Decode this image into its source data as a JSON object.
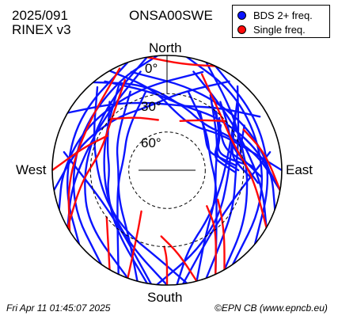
{
  "header": {
    "date": "2025/091",
    "format": "RINEX v3",
    "station": "ONSA00SWE"
  },
  "footer": {
    "timestamp": "Fri Apr 11 01:45:07 2025",
    "credit": "©EPN CB (www.epncb.eu)"
  },
  "colors": {
    "multi": "#0a14ff",
    "single": "#ff0a0a",
    "grid": "#000000"
  },
  "chart_data": {
    "type": "scatter",
    "projection": "polar-skyplot",
    "directions": {
      "north": "North",
      "south": "South",
      "east": "East",
      "west": "West"
    },
    "elevation_rings": [
      {
        "elevation": 0,
        "label": "0°"
      },
      {
        "elevation": 30,
        "label": "30°"
      },
      {
        "elevation": 60,
        "label": "60°"
      }
    ],
    "legend": {
      "placement": "top-right",
      "entries": [
        {
          "key": "multi",
          "label": "BDS 2+ freq."
        },
        {
          "key": "single",
          "label": "Single freq."
        }
      ]
    },
    "series": [
      {
        "name": "BDS 2+ freq.",
        "color_key": "multi",
        "tracks": [
          {
            "az": [
              190,
              220,
              250,
              270,
              290,
              320
            ],
            "el": [
              0,
              28,
              40,
              45,
              40,
              20
            ]
          },
          {
            "az": [
              180,
              205,
              235,
              265,
              300,
              330
            ],
            "el": [
              0,
              24,
              36,
              40,
              34,
              14
            ]
          },
          {
            "az": [
              170,
              185,
              215,
              250,
              290,
              320
            ],
            "el": [
              0,
              20,
              32,
              36,
              28,
              5
            ]
          },
          {
            "az": [
              175,
              165,
              140,
              110,
              80,
              50
            ],
            "el": [
              0,
              26,
              40,
              46,
              42,
              20
            ]
          },
          {
            "az": [
              185,
              160,
              130,
              100,
              70,
              45
            ],
            "el": [
              0,
              22,
              36,
              42,
              36,
              12
            ]
          },
          {
            "az": [
              160,
              145,
              120,
              90,
              65,
              40
            ],
            "el": [
              0,
              18,
              30,
              36,
              28,
              4
            ]
          },
          {
            "az": [
              200,
              235,
              265,
              295,
              325,
              350
            ],
            "el": [
              0,
              15,
              24,
              26,
              18,
              0
            ]
          },
          {
            "az": [
              150,
              125,
              95,
              70,
              45,
              20
            ],
            "el": [
              0,
              16,
              26,
              28,
              20,
              0
            ]
          },
          {
            "az": [
              215,
              250,
              290,
              330,
              355
            ],
            "el": [
              0,
              10,
              15,
              10,
              0
            ]
          },
          {
            "az": [
              145,
              110,
              75,
              40,
              10
            ],
            "el": [
              0,
              10,
              14,
              9,
              0
            ]
          },
          {
            "az": [
              195,
              210,
              240,
              270,
              300,
              335
            ],
            "el": [
              0,
              30,
              46,
              52,
              44,
              22
            ]
          },
          {
            "az": [
              165,
              150,
              120,
              90,
              60,
              30
            ],
            "el": [
              0,
              30,
              46,
              52,
              44,
              22
            ]
          },
          {
            "az": [
              230,
              260,
              300,
              340
            ],
            "el": [
              0,
              8,
              8,
              0
            ]
          },
          {
            "az": [
              130,
              95,
              60,
              25
            ],
            "el": [
              0,
              8,
              8,
              0
            ]
          },
          {
            "az": [
              205,
              225,
              255,
              285,
              315,
              345
            ],
            "el": [
              0,
              35,
              50,
              55,
              46,
              26
            ]
          },
          {
            "az": [
              155,
              135,
              105,
              75,
              45,
              15
            ],
            "el": [
              0,
              35,
              50,
              55,
              46,
              26
            ]
          },
          {
            "az": [
              330,
              350,
              10,
              30,
              55,
              75,
              90
            ],
            "el": [
              0,
              25,
              45,
              50,
              40,
              25,
              0
            ]
          },
          {
            "az": [
              320,
              345,
              15,
              40,
              60,
              80,
              100
            ],
            "el": [
              0,
              20,
              38,
              44,
              35,
              18,
              0
            ]
          },
          {
            "az": [
              260,
              285,
              315,
              345,
              10,
              35
            ],
            "el": [
              0,
              18,
              32,
              38,
              28,
              5
            ]
          },
          {
            "az": [
              100,
              75,
              45,
              15,
              350,
              325
            ],
            "el": [
              0,
              18,
              32,
              38,
              28,
              5
            ]
          },
          {
            "az": [
              250,
              270,
              300,
              340,
              20
            ],
            "el": [
              0,
              8,
              18,
              22,
              8
            ]
          },
          {
            "az": [
              110,
              90,
              60,
              20,
              340
            ],
            "el": [
              0,
              8,
              18,
              22,
              8
            ]
          },
          {
            "az": [
              40,
              55,
              70,
              80,
              85
            ],
            "el": [
              30,
              40,
              48,
              40,
              30
            ]
          },
          {
            "az": [
              35,
              50,
              68,
              80,
              88
            ],
            "el": [
              28,
              36,
              42,
              34,
              22
            ]
          },
          {
            "az": [
              45,
              60,
              72,
              82,
              90
            ],
            "el": [
              32,
              42,
              50,
              44,
              34
            ]
          },
          {
            "az": [
              50,
              62,
              75,
              85,
              92
            ],
            "el": [
              35,
              45,
              52,
              45,
              36
            ]
          },
          {
            "az": [
              55,
              65,
              78,
              88,
              95
            ],
            "el": [
              25,
              33,
              38,
              32,
              24
            ]
          },
          {
            "az": [
              60,
              70,
              80,
              90,
              98
            ],
            "el": [
              20,
              28,
              32,
              26,
              18
            ]
          },
          {
            "az": [
              30,
              45,
              65,
              78,
              86
            ],
            "el": [
              38,
              48,
              55,
              46,
              36
            ]
          },
          {
            "az": [
              38,
              52,
              70,
              84,
              94
            ],
            "el": [
              22,
              30,
              36,
              28,
              16
            ]
          },
          {
            "az": [
              300,
              320,
              345,
              15,
              40,
              60
            ],
            "el": [
              0,
              22,
              35,
              38,
              26,
              6
            ]
          },
          {
            "az": [
              240,
              260,
              290,
              320,
              345
            ],
            "el": [
              0,
              14,
              26,
              24,
              10
            ]
          },
          {
            "az": [
              120,
              100,
              70,
              40,
              15
            ],
            "el": [
              0,
              14,
              26,
              24,
              10
            ]
          },
          {
            "az": [
              188,
              230,
              280
            ],
            "el": [
              0,
              35,
              8
            ]
          },
          {
            "az": [
              172,
              130,
              80
            ],
            "el": [
              0,
              35,
              8
            ]
          }
        ]
      },
      {
        "name": "Single freq.",
        "color_key": "single",
        "tracks": [
          {
            "az": [
              180,
              180,
              182
            ],
            "el": [
              0,
              20,
              30
            ]
          },
          {
            "az": [
              240,
              262,
              285,
              310,
              335
            ],
            "el": [
              0,
              22,
              36,
              32,
              12
            ]
          },
          {
            "az": [
              238,
              265,
              300,
              335
            ],
            "el": [
              0,
              12,
              18,
              2
            ]
          },
          {
            "az": [
              120,
              95,
              70,
              45,
              20
            ],
            "el": [
              0,
              22,
              34,
              30,
              10
            ]
          },
          {
            "az": [
              150,
              140,
              130,
              120
            ],
            "el": [
              0,
              20,
              34,
              44
            ]
          },
          {
            "az": [
              210,
              220,
              232
            ],
            "el": [
              0,
              18,
              30
            ]
          },
          {
            "az": [
              165,
              172,
              185
            ],
            "el": [
              0,
              24,
              38
            ]
          },
          {
            "az": [
              312,
              330,
              350
            ],
            "el": [
              30,
              42,
              50
            ]
          },
          {
            "az": [
              50,
              35,
              15
            ],
            "el": [
              30,
              42,
              50
            ]
          },
          {
            "az": [
              100,
              80,
              62
            ],
            "el": [
              0,
              12,
              22
            ]
          },
          {
            "az": [
              270,
              285,
              300
            ],
            "el": [
              0,
              22,
              36
            ]
          },
          {
            "az": [
              350,
              8,
              25
            ],
            "el": [
              0,
              6,
              0
            ]
          },
          {
            "az": [
              200,
              205,
              212
            ],
            "el": [
              0,
              35,
              52
            ]
          },
          {
            "az": [
              155,
              140,
              132
            ],
            "el": [
              0,
              30,
              48
            ]
          }
        ]
      }
    ]
  }
}
